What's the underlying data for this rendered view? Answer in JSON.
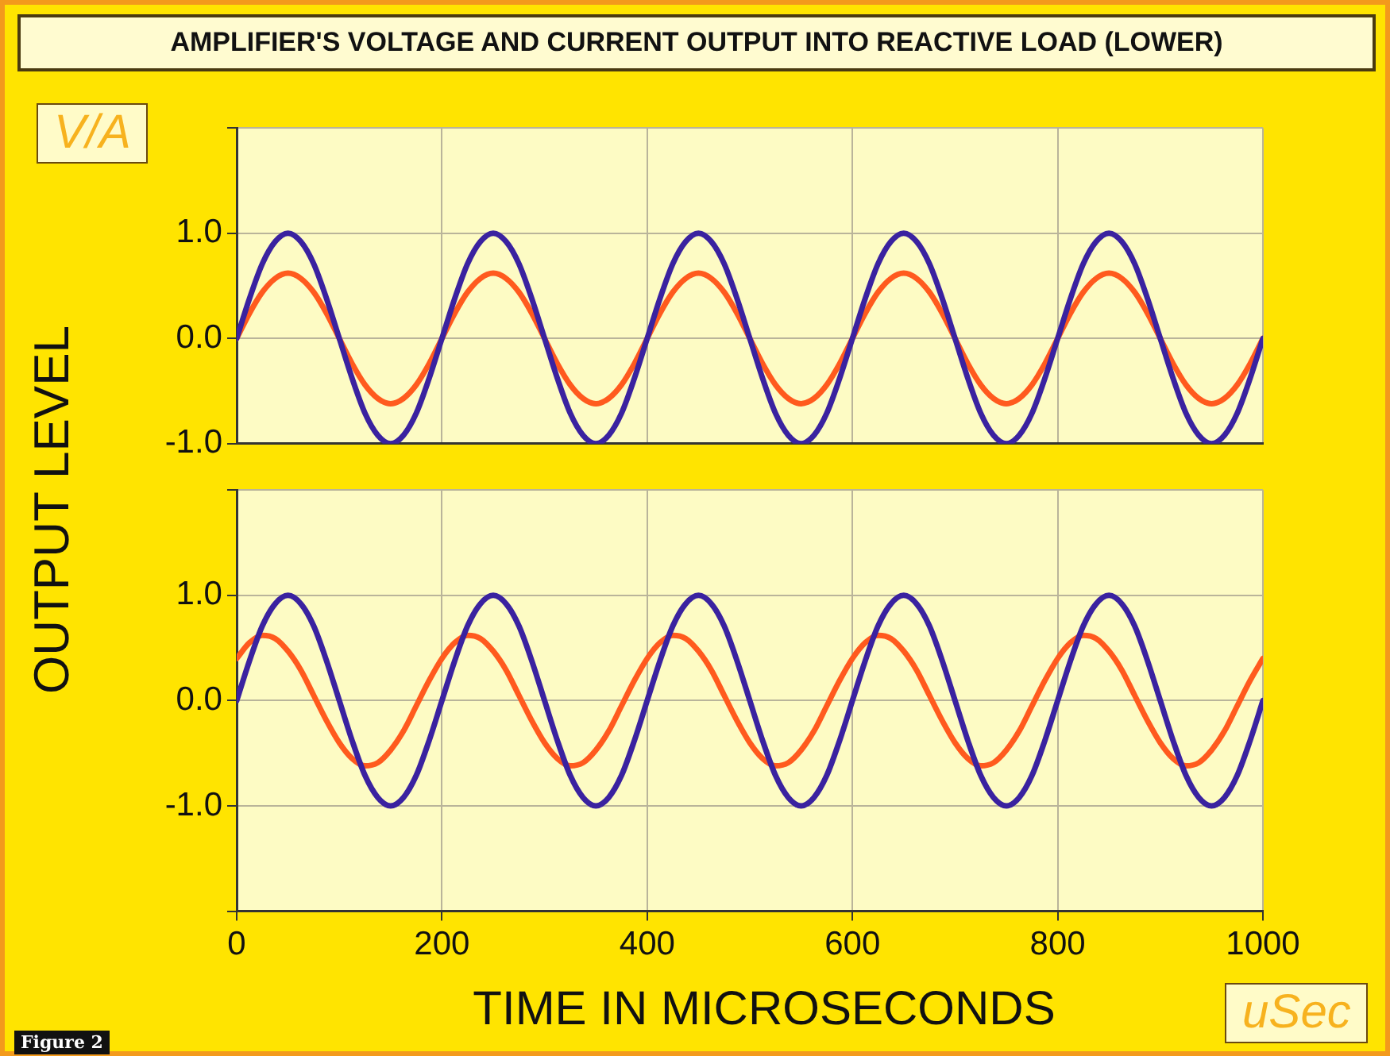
{
  "chart_data": [
    {
      "type": "line",
      "title": "AMPLIFIER'S VOLTAGE AND CURRENT OUTPUT INTO REACTIVE LOAD (LOWER)",
      "ylabel": "OUTPUT LEVEL",
      "annotations": [
        "V/A"
      ],
      "marker": "none",
      "grid": true,
      "tick_labels": "y",
      "x": [
        0,
        12.5,
        25,
        37.5,
        50,
        62.5,
        75,
        87.5,
        100,
        112.5,
        125,
        137.5,
        150,
        162.5,
        175,
        187.5,
        200,
        212.5,
        225,
        237.5,
        250,
        262.5,
        275,
        287.5,
        300,
        312.5,
        325,
        337.5,
        350,
        362.5,
        375,
        387.5,
        400,
        412.5,
        425,
        437.5,
        450,
        462.5,
        475,
        487.5,
        500,
        512.5,
        525,
        537.5,
        550,
        562.5,
        575,
        587.5,
        600,
        612.5,
        625,
        637.5,
        650,
        662.5,
        675,
        687.5,
        700,
        712.5,
        725,
        737.5,
        750,
        762.5,
        775,
        787.5,
        800,
        812.5,
        825,
        837.5,
        850,
        862.5,
        875,
        887.5,
        900,
        912.5,
        925,
        937.5,
        950,
        962.5,
        975,
        987.5,
        1000
      ],
      "xlim": [
        0,
        1000
      ],
      "xticks": [
        0,
        200,
        400,
        600,
        800,
        1000
      ],
      "ylim": [
        -1,
        2
      ],
      "yticks": [
        {
          "value": -1,
          "label": "-1.0"
        },
        {
          "value": 0,
          "label": "0.0"
        },
        {
          "value": 1,
          "label": "1.0"
        },
        {
          "value": 2,
          "label": null
        }
      ],
      "series": [
        {
          "color": "#3a22a0",
          "values": [
            0,
            0.38,
            0.71,
            0.92,
            1,
            0.92,
            0.71,
            0.38,
            0,
            -0.38,
            -0.71,
            -0.92,
            -1,
            -0.92,
            -0.71,
            -0.38,
            0,
            0.38,
            0.71,
            0.92,
            1,
            0.92,
            0.71,
            0.38,
            0,
            -0.38,
            -0.71,
            -0.92,
            -1,
            -0.92,
            -0.71,
            -0.38,
            0,
            0.38,
            0.71,
            0.92,
            1,
            0.92,
            0.71,
            0.38,
            0,
            -0.38,
            -0.71,
            -0.92,
            -1,
            -0.92,
            -0.71,
            -0.38,
            0,
            0.38,
            0.71,
            0.92,
            1,
            0.92,
            0.71,
            0.38,
            0,
            -0.38,
            -0.71,
            -0.92,
            -1,
            -0.92,
            -0.71,
            -0.38,
            0,
            0.38,
            0.71,
            0.92,
            1,
            0.92,
            0.71,
            0.38,
            0,
            -0.38,
            -0.71,
            -0.92,
            -1,
            -0.92,
            -0.71,
            -0.38,
            0
          ]
        },
        {
          "color": "#ff5a1e",
          "values": [
            0,
            0.24,
            0.44,
            0.57,
            0.62,
            0.57,
            0.44,
            0.24,
            0,
            -0.24,
            -0.44,
            -0.57,
            -0.62,
            -0.57,
            -0.44,
            -0.24,
            0,
            0.24,
            0.44,
            0.57,
            0.62,
            0.57,
            0.44,
            0.24,
            0,
            -0.24,
            -0.44,
            -0.57,
            -0.62,
            -0.57,
            -0.44,
            -0.24,
            0,
            0.24,
            0.44,
            0.57,
            0.62,
            0.57,
            0.44,
            0.24,
            0,
            -0.24,
            -0.44,
            -0.57,
            -0.62,
            -0.57,
            -0.44,
            -0.24,
            0,
            0.24,
            0.44,
            0.57,
            0.62,
            0.57,
            0.44,
            0.24,
            0,
            -0.24,
            -0.44,
            -0.57,
            -0.62,
            -0.57,
            -0.44,
            -0.24,
            0,
            0.24,
            0.44,
            0.57,
            0.62,
            0.57,
            0.44,
            0.24,
            0,
            -0.24,
            -0.44,
            -0.57,
            -0.62,
            -0.57,
            -0.44,
            -0.24,
            0
          ]
        }
      ]
    },
    {
      "type": "line",
      "xlabel": "TIME IN MICROSECONDS",
      "annotations": [
        "uSec",
        "Figure 2"
      ],
      "marker": "none",
      "grid": true,
      "x": [
        0,
        12.5,
        25,
        37.5,
        50,
        62.5,
        75,
        87.5,
        100,
        112.5,
        125,
        137.5,
        150,
        162.5,
        175,
        187.5,
        200,
        212.5,
        225,
        237.5,
        250,
        262.5,
        275,
        287.5,
        300,
        312.5,
        325,
        337.5,
        350,
        362.5,
        375,
        387.5,
        400,
        412.5,
        425,
        437.5,
        450,
        462.5,
        475,
        487.5,
        500,
        512.5,
        525,
        537.5,
        550,
        562.5,
        575,
        587.5,
        600,
        612.5,
        625,
        637.5,
        650,
        662.5,
        675,
        687.5,
        700,
        712.5,
        725,
        737.5,
        750,
        762.5,
        775,
        787.5,
        800,
        812.5,
        825,
        837.5,
        850,
        862.5,
        875,
        887.5,
        900,
        912.5,
        925,
        937.5,
        950,
        962.5,
        975,
        987.5,
        1000
      ],
      "xlim": [
        0,
        1000
      ],
      "xticks": [
        0,
        200,
        400,
        600,
        800,
        1000
      ],
      "ylim": [
        -2,
        2
      ],
      "yticks": [
        {
          "value": -2,
          "label": null
        },
        {
          "value": -1,
          "label": "-1.0"
        },
        {
          "value": 0,
          "label": "0.0"
        },
        {
          "value": 1,
          "label": "1.0"
        },
        {
          "value": 2,
          "label": null
        }
      ],
      "series": [
        {
          "color": "#3a22a0",
          "values": [
            0,
            0.38,
            0.71,
            0.92,
            1,
            0.92,
            0.71,
            0.38,
            0,
            -0.38,
            -0.71,
            -0.92,
            -1,
            -0.92,
            -0.71,
            -0.38,
            0,
            0.38,
            0.71,
            0.92,
            1,
            0.92,
            0.71,
            0.38,
            0,
            -0.38,
            -0.71,
            -0.92,
            -1,
            -0.92,
            -0.71,
            -0.38,
            0,
            0.38,
            0.71,
            0.92,
            1,
            0.92,
            0.71,
            0.38,
            0,
            -0.38,
            -0.71,
            -0.92,
            -1,
            -0.92,
            -0.71,
            -0.38,
            0,
            0.38,
            0.71,
            0.92,
            1,
            0.92,
            0.71,
            0.38,
            0,
            -0.38,
            -0.71,
            -0.92,
            -1,
            -0.92,
            -0.71,
            -0.38,
            0,
            0.38,
            0.71,
            0.92,
            1,
            0.92,
            0.71,
            0.38,
            0,
            -0.38,
            -0.71,
            -0.92,
            -1,
            -0.92,
            -0.71,
            -0.38,
            0
          ]
        },
        {
          "color": "#ff5a1e",
          "values": [
            0.4,
            0.55,
            0.62,
            0.59,
            0.47,
            0.29,
            0.05,
            -0.19,
            -0.4,
            -0.55,
            -0.62,
            -0.59,
            -0.47,
            -0.29,
            -0.05,
            0.19,
            0.4,
            0.55,
            0.62,
            0.59,
            0.47,
            0.29,
            0.05,
            -0.19,
            -0.4,
            -0.55,
            -0.62,
            -0.59,
            -0.47,
            -0.29,
            -0.05,
            0.19,
            0.4,
            0.55,
            0.62,
            0.59,
            0.47,
            0.29,
            0.05,
            -0.19,
            -0.4,
            -0.55,
            -0.62,
            -0.59,
            -0.47,
            -0.29,
            -0.05,
            0.19,
            0.4,
            0.55,
            0.62,
            0.59,
            0.47,
            0.29,
            0.05,
            -0.19,
            -0.4,
            -0.55,
            -0.62,
            -0.59,
            -0.47,
            -0.29,
            -0.05,
            0.19,
            0.4,
            0.55,
            0.62,
            0.59,
            0.47,
            0.29,
            0.05,
            -0.19,
            -0.4,
            -0.55,
            -0.62,
            -0.59,
            -0.47,
            -0.29,
            -0.05,
            0.19,
            0.4
          ]
        }
      ]
    }
  ]
}
